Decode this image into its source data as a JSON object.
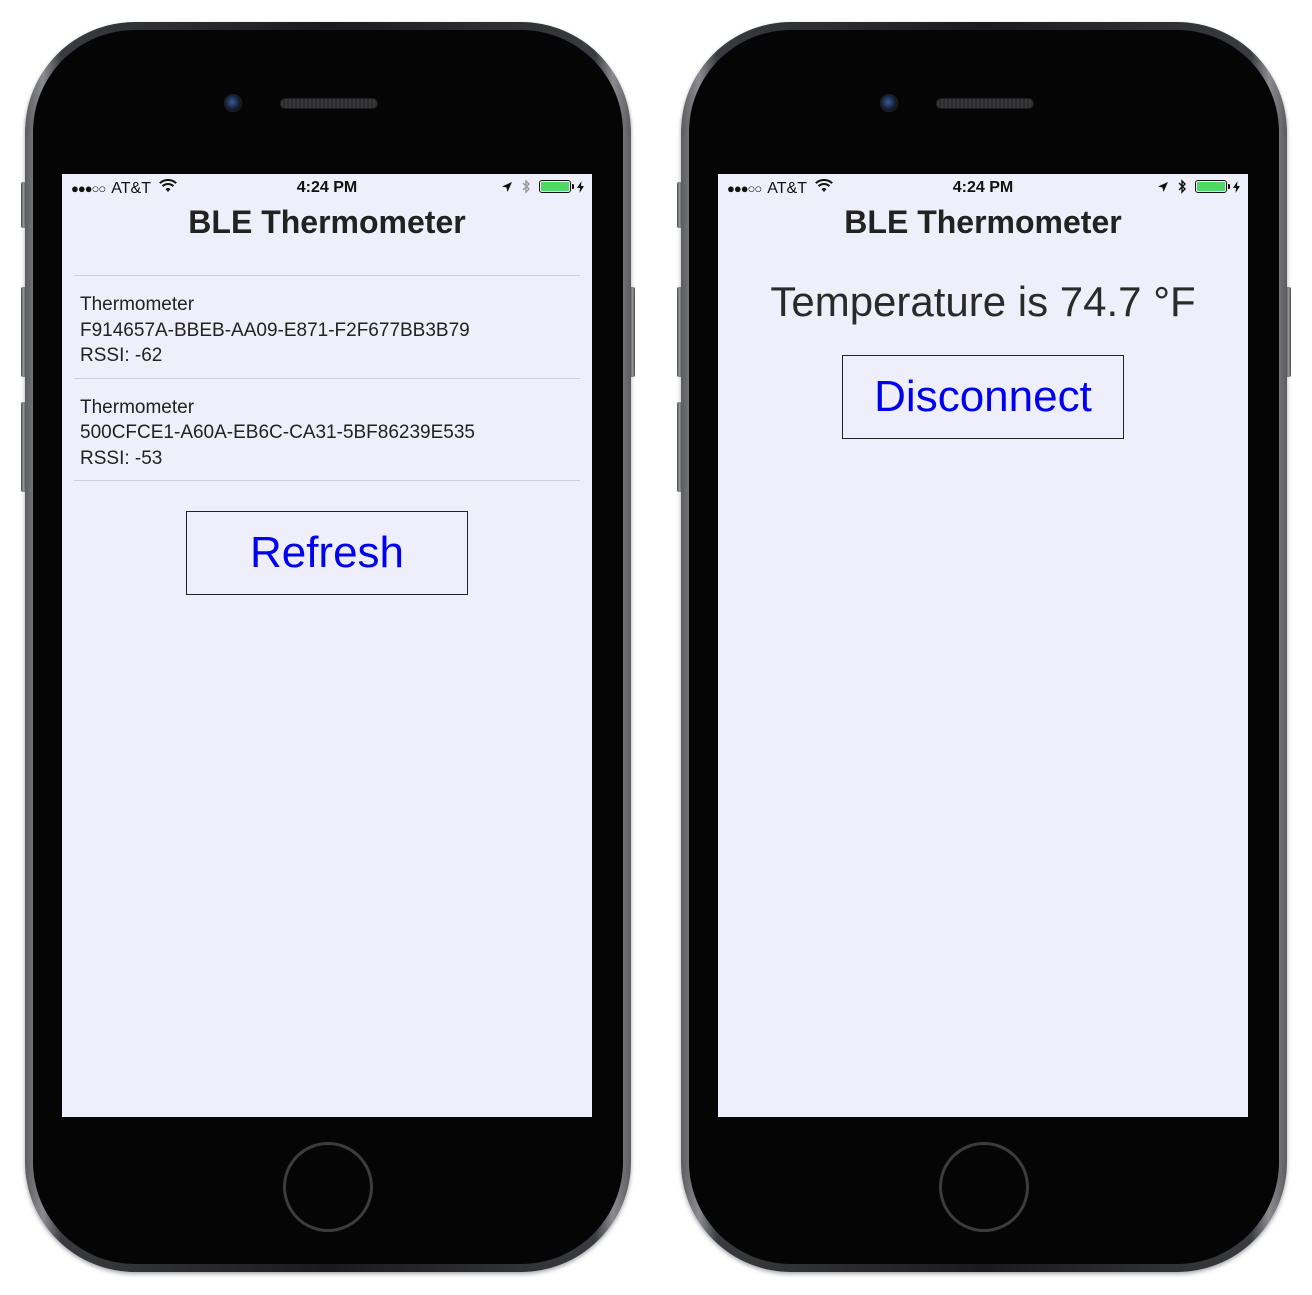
{
  "status_bar": {
    "signal": "●●●○○",
    "carrier": "AT&T",
    "time": "4:24 PM",
    "icons": [
      "wifi-icon",
      "location-arrow-icon",
      "bluetooth-icon",
      "battery-icon",
      "charging-bolt-icon"
    ],
    "battery_color": "#4cd964"
  },
  "app": {
    "title": "BLE Thermometer"
  },
  "scan_screen": {
    "devices": [
      {
        "name": "Thermometer",
        "uuid": "F914657A-BBEB-AA09-E871-F2F677BB3B79",
        "rssi": "RSSI: -62"
      },
      {
        "name": "Thermometer",
        "uuid": "500CFCE1-A60A-EB6C-CA31-5BF86239E535",
        "rssi": "RSSI: -53"
      }
    ],
    "refresh_label": "Refresh"
  },
  "connected_screen": {
    "temperature_text": "Temperature is 74.7 °F",
    "disconnect_label": "Disconnect"
  },
  "colors": {
    "screen_background": "#efeffb",
    "button_text": "#0000ee",
    "title_text": "#222222"
  }
}
